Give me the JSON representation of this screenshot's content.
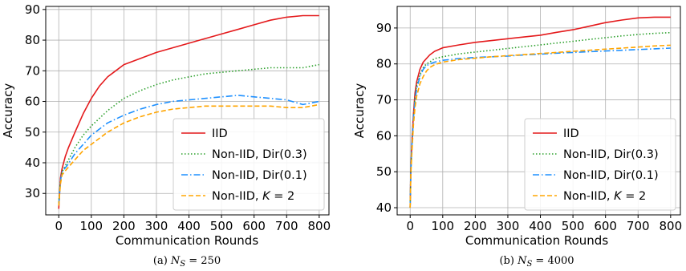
{
  "chart_data": [
    {
      "type": "line",
      "caption_prefix": "(a) ",
      "caption_var": "N",
      "caption_sub": "S",
      "caption_value": " = 250",
      "xlabel": "Communication Rounds",
      "ylabel": "Accuracy",
      "xlim": [
        -40,
        830
      ],
      "ylim": [
        23,
        91
      ],
      "xticks": [
        0,
        100,
        200,
        300,
        400,
        500,
        600,
        700,
        800
      ],
      "yticks": [
        30,
        40,
        50,
        60,
        70,
        80,
        90
      ],
      "grid": true,
      "legend_position": "bottom-right",
      "series": [
        {
          "name": "IID",
          "color": "#e41a1c",
          "dash": "solid",
          "x": [
            0,
            5,
            10,
            20,
            30,
            50,
            75,
            100,
            125,
            150,
            175,
            200,
            250,
            300,
            350,
            400,
            450,
            500,
            550,
            600,
            650,
            700,
            750,
            800
          ],
          "y": [
            25,
            35,
            38,
            42,
            45,
            50,
            56,
            61,
            65,
            68,
            70,
            72,
            74,
            76,
            77.5,
            79,
            80.5,
            82,
            83.5,
            85,
            86.5,
            87.5,
            88,
            88
          ]
        },
        {
          "name": "Non-IID, Dir(0.3)",
          "color": "#2ca02c",
          "dash": "dotted",
          "x": [
            0,
            5,
            10,
            25,
            50,
            75,
            100,
            150,
            200,
            250,
            300,
            350,
            400,
            450,
            500,
            550,
            600,
            650,
            700,
            750,
            800
          ],
          "y": [
            27,
            34,
            37,
            40,
            45,
            49,
            52,
            57,
            61,
            63.5,
            65.5,
            67,
            68,
            69,
            69.5,
            70,
            70.5,
            71,
            71,
            71,
            72
          ]
        },
        {
          "name": "Non-IID, Dir(0.1)",
          "color": "#1e90ff",
          "dash": "dashdot",
          "x": [
            0,
            5,
            10,
            25,
            50,
            75,
            100,
            150,
            200,
            250,
            300,
            350,
            400,
            450,
            500,
            550,
            600,
            650,
            700,
            750,
            800
          ],
          "y": [
            26,
            34,
            37,
            39,
            43,
            46,
            49,
            53,
            55.5,
            57.5,
            59,
            60,
            60.5,
            61,
            61.5,
            62,
            61.5,
            61,
            60.5,
            59,
            60
          ]
        },
        {
          "name": "Non-IID, K = 2",
          "color": "#ffa500",
          "dash": "dashed",
          "x": [
            0,
            5,
            10,
            25,
            50,
            75,
            100,
            150,
            200,
            250,
            300,
            350,
            400,
            450,
            500,
            550,
            600,
            650,
            700,
            750,
            800
          ],
          "y": [
            26,
            33,
            36,
            38,
            41,
            44,
            46,
            50,
            53,
            55,
            56.5,
            57.5,
            58,
            58.5,
            58.5,
            58.5,
            58.5,
            58.5,
            58,
            58,
            59
          ]
        }
      ]
    },
    {
      "type": "line",
      "caption_prefix": "(b) ",
      "caption_var": "N",
      "caption_sub": "S",
      "caption_value": " = 4000",
      "xlabel": "Communication Rounds",
      "ylabel": "Accuracy",
      "xlim": [
        -40,
        830
      ],
      "ylim": [
        38,
        96
      ],
      "xticks": [
        0,
        100,
        200,
        300,
        400,
        500,
        600,
        700,
        800
      ],
      "yticks": [
        40,
        50,
        60,
        70,
        80,
        90
      ],
      "grid": true,
      "legend_position": "bottom-right",
      "series": [
        {
          "name": "IID",
          "color": "#e41a1c",
          "dash": "solid",
          "x": [
            0,
            2,
            5,
            10,
            15,
            20,
            30,
            40,
            50,
            60,
            75,
            100,
            150,
            200,
            250,
            300,
            350,
            400,
            450,
            500,
            550,
            600,
            650,
            700,
            750,
            800
          ],
          "y": [
            40,
            50,
            58,
            66,
            72,
            75,
            78.5,
            80.5,
            81.5,
            82.5,
            83.5,
            84.5,
            85.3,
            86,
            86.5,
            87,
            87.5,
            88,
            88.8,
            89.5,
            90.5,
            91.5,
            92.2,
            92.8,
            93,
            93
          ]
        },
        {
          "name": "Non-IID, Dir(0.3)",
          "color": "#2ca02c",
          "dash": "dotted",
          "x": [
            0,
            2,
            5,
            10,
            15,
            20,
            30,
            40,
            50,
            60,
            75,
            100,
            150,
            200,
            250,
            300,
            350,
            400,
            450,
            500,
            550,
            600,
            650,
            700,
            750,
            800
          ],
          "y": [
            40,
            50,
            57,
            65,
            71,
            74,
            77,
            79,
            80,
            80.5,
            81.5,
            82,
            82.8,
            83.3,
            83.8,
            84.3,
            84.8,
            85.3,
            85.8,
            86.3,
            86.8,
            87.3,
            87.8,
            88.2,
            88.5,
            88.7
          ]
        },
        {
          "name": "Non-IID, Dir(0.1)",
          "color": "#1e90ff",
          "dash": "dashdot",
          "x": [
            0,
            2,
            5,
            10,
            15,
            20,
            30,
            40,
            50,
            60,
            75,
            100,
            150,
            200,
            250,
            300,
            350,
            400,
            450,
            500,
            550,
            600,
            650,
            700,
            750,
            800
          ],
          "y": [
            40,
            50,
            57,
            65,
            70,
            73,
            76.5,
            78.5,
            79.5,
            80,
            80.5,
            81,
            81.5,
            81.8,
            82,
            82.2,
            82.5,
            82.7,
            83,
            83.2,
            83.4,
            83.6,
            83.8,
            84,
            84.2,
            84.4
          ]
        },
        {
          "name": "Non-IID, K = 2",
          "color": "#ffa500",
          "dash": "dashed",
          "x": [
            0,
            2,
            5,
            10,
            15,
            20,
            30,
            40,
            50,
            60,
            75,
            100,
            150,
            200,
            250,
            300,
            350,
            400,
            450,
            500,
            550,
            600,
            650,
            700,
            750,
            800
          ],
          "y": [
            40,
            49,
            55,
            63,
            68,
            71,
            74.5,
            76.5,
            78,
            79,
            79.8,
            80.5,
            81.2,
            81.6,
            82,
            82.3,
            82.6,
            82.9,
            83.2,
            83.5,
            83.8,
            84.1,
            84.4,
            84.7,
            85,
            85.2
          ]
        }
      ]
    }
  ]
}
